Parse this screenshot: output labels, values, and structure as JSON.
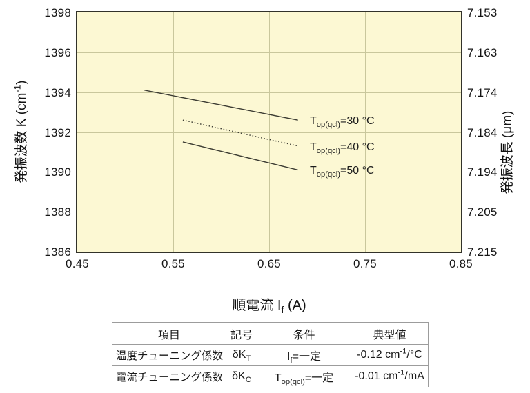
{
  "colors": {
    "plot_background": "#fcf8d3",
    "gridline": "#c9c79c",
    "axis_frame": "#32322a",
    "line_color": "#3b3b32",
    "text": "#111111",
    "table_border": "#9c9c9c"
  },
  "chart_data": {
    "type": "line",
    "title": "",
    "xlabel": "順電流 If (A)",
    "ylabel_left": "発振波数 K (cm-1)",
    "ylabel_right": "発振波長 (μm)",
    "xlabel_rich": [
      {
        "t": "順電流 I"
      },
      {
        "t": "f",
        "sub": true
      },
      {
        "t": " (A)"
      }
    ],
    "ylabel_left_rich": [
      {
        "t": "発振波数 K (cm"
      },
      {
        "t": "-1",
        "sup": true
      },
      {
        "t": ")"
      }
    ],
    "ylabel_right_rich": [
      {
        "t": "発振波長 (μm)"
      }
    ],
    "xlim": [
      0.45,
      0.85
    ],
    "ylim_left": [
      1386,
      1398
    ],
    "x_ticks": [
      "0.45",
      "0.55",
      "0.65",
      "0.75",
      "0.85"
    ],
    "y_ticks_left": [
      "1386",
      "1388",
      "1390",
      "1392",
      "1394",
      "1396",
      "1398"
    ],
    "y_ticks_right": [
      "7.153",
      "7.163",
      "7.174",
      "7.184",
      "7.194",
      "7.205",
      "7.215"
    ],
    "grid": true,
    "legend_position": "inline-right-of-lines",
    "series": [
      {
        "name": "Top(qcl)=30 °C",
        "label_rich": [
          {
            "t": "T"
          },
          {
            "t": "op(qcl)",
            "sub": true
          },
          {
            "t": "=30 °C"
          }
        ],
        "style": "solid",
        "x": [
          0.52,
          0.68
        ],
        "y": [
          1394.1,
          1392.6
        ]
      },
      {
        "name": "Top(qcl)=40 °C",
        "label_rich": [
          {
            "t": "T"
          },
          {
            "t": "op(qcl)",
            "sub": true
          },
          {
            "t": "=40 °C"
          }
        ],
        "style": "dotted",
        "x": [
          0.56,
          0.68
        ],
        "y": [
          1392.6,
          1391.3
        ]
      },
      {
        "name": "Top(qcl)=50 °C",
        "label_rich": [
          {
            "t": "T"
          },
          {
            "t": "op(qcl)",
            "sub": true
          },
          {
            "t": "=50 °C"
          }
        ],
        "style": "solid",
        "x": [
          0.56,
          0.68
        ],
        "y": [
          1391.5,
          1390.1
        ]
      }
    ]
  },
  "table": {
    "headers": [
      [
        {
          "t": "項目"
        }
      ],
      [
        {
          "t": "記号"
        }
      ],
      [
        {
          "t": "条件"
        }
      ],
      [
        {
          "t": "典型値"
        }
      ]
    ],
    "rows": [
      [
        [
          {
            "t": "温度チューニング係数"
          }
        ],
        [
          {
            "t": "δK"
          },
          {
            "t": "T",
            "sub": true
          }
        ],
        [
          {
            "t": "I"
          },
          {
            "t": "f",
            "sub": true
          },
          {
            "t": "=一定"
          }
        ],
        [
          {
            "t": "-0.12 cm"
          },
          {
            "t": "-1",
            "sup": true
          },
          {
            "t": "/°C"
          }
        ]
      ],
      [
        [
          {
            "t": "電流チューニング係数"
          }
        ],
        [
          {
            "t": "δK"
          },
          {
            "t": "C",
            "sub": true
          }
        ],
        [
          {
            "t": "T"
          },
          {
            "t": "op(qcl)",
            "sub": true
          },
          {
            "t": "=一定"
          }
        ],
        [
          {
            "t": "-0.01 cm"
          },
          {
            "t": "-1",
            "sup": true
          },
          {
            "t": "/mA"
          }
        ]
      ]
    ]
  }
}
